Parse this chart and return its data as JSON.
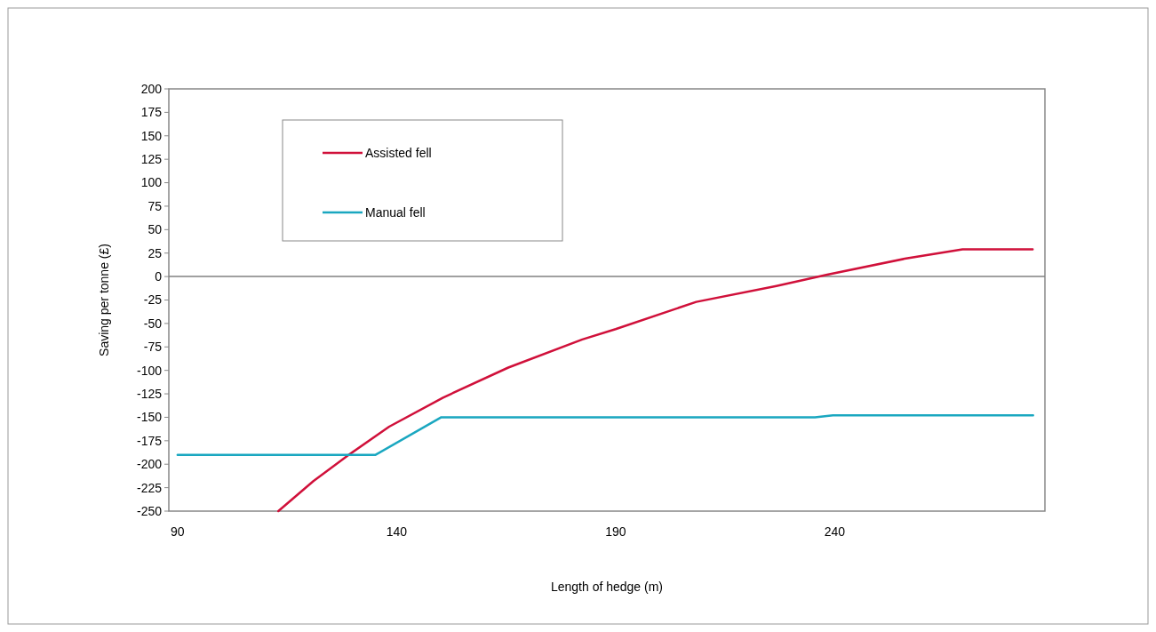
{
  "chart_data": {
    "type": "line",
    "xlabel": "Length of hedge (m)",
    "ylabel": "Saving per tonne (£)",
    "xlim": [
      88,
      288
    ],
    "xticks": [
      90,
      140,
      190,
      240
    ],
    "ylim": [
      -250,
      200
    ],
    "yticks": [
      -250,
      -225,
      -200,
      -175,
      -150,
      -125,
      -100,
      -75,
      -50,
      -25,
      0,
      25,
      50,
      75,
      100,
      125,
      150,
      175,
      200
    ],
    "legend": "top left",
    "grid": false,
    "marker": "none",
    "line_style": "solid",
    "ref_lines": [
      {
        "axis": "y",
        "value": 0,
        "color": "#808080"
      }
    ],
    "series": [
      {
        "name": "Assisted fell",
        "color": "#d0103a",
        "x": [
          113,
          121,
          129.4,
          138.3,
          150.6,
          165.5,
          182.4,
          190,
          208.4,
          226.7,
          238.3,
          256,
          269.2,
          285.2
        ],
        "values": [
          -250,
          -218,
          -189,
          -160,
          -129,
          -97,
          -67,
          -56,
          -27,
          -10,
          2,
          19,
          29,
          29
        ]
      },
      {
        "name": "Manual fell",
        "color": "#1aa7c0",
        "x": [
          90,
          135.2,
          150.2,
          235.5,
          239.6,
          285.3
        ],
        "values": [
          -190,
          -190,
          -150,
          -150,
          -148,
          -148
        ]
      }
    ]
  }
}
